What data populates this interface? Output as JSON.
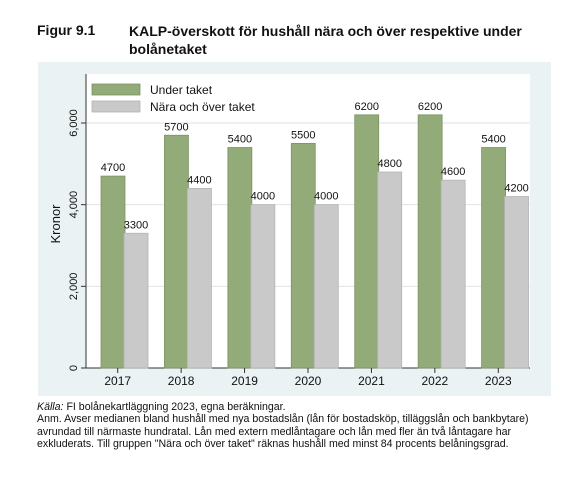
{
  "figure": {
    "label": "Figur 9.1",
    "title": "KALP-överskott för hushåll nära och över respektive under bolånetaket"
  },
  "chart_data": {
    "type": "bar",
    "categories": [
      "2017",
      "2018",
      "2019",
      "2020",
      "2021",
      "2022",
      "2023"
    ],
    "series": [
      {
        "name": "Under taket",
        "values": [
          4700,
          5700,
          5400,
          5500,
          6200,
          6200,
          5400
        ],
        "color": "#93aa79"
      },
      {
        "name": "Nära och över taket",
        "values": [
          3300,
          4400,
          4000,
          4000,
          4800,
          4600,
          4200
        ],
        "color": "#c9c9c9"
      }
    ],
    "data_labels": {
      "Under taket": [
        "4700",
        "5700",
        "5400",
        "5500",
        "6200",
        "6200",
        "5400"
      ],
      "Nära och över taket": [
        "3300",
        "4400",
        "4000",
        "4000",
        "4800",
        "4600",
        "4200"
      ]
    },
    "ylabel": "Kronor",
    "xlabel": "",
    "ylim": [
      0,
      7200
    ],
    "yticks": [
      0,
      2000,
      4000,
      6000
    ],
    "ytick_labels": [
      "0",
      "2,000",
      "4,000",
      "6,000"
    ],
    "grid": true,
    "legend": "top-left",
    "plot_background": "#ffffff",
    "frame_background": "#eaf2f3"
  },
  "footer": {
    "source_label": "Källa:",
    "source_text": " FI bolånekartläggning 2023, egna beräkningar.",
    "note": "Anm. Avser medianen bland hushåll med nya bostadslån (lån för bostadsköp, tilläggslån och bankbytare) avrundad till närmaste hundratal. Lån med extern medlåntagare och lån med fler än två låntagare har exkluderats. Till gruppen \"Nära och över taket\" räknas hushåll med minst 84 procents belåningsgrad."
  }
}
